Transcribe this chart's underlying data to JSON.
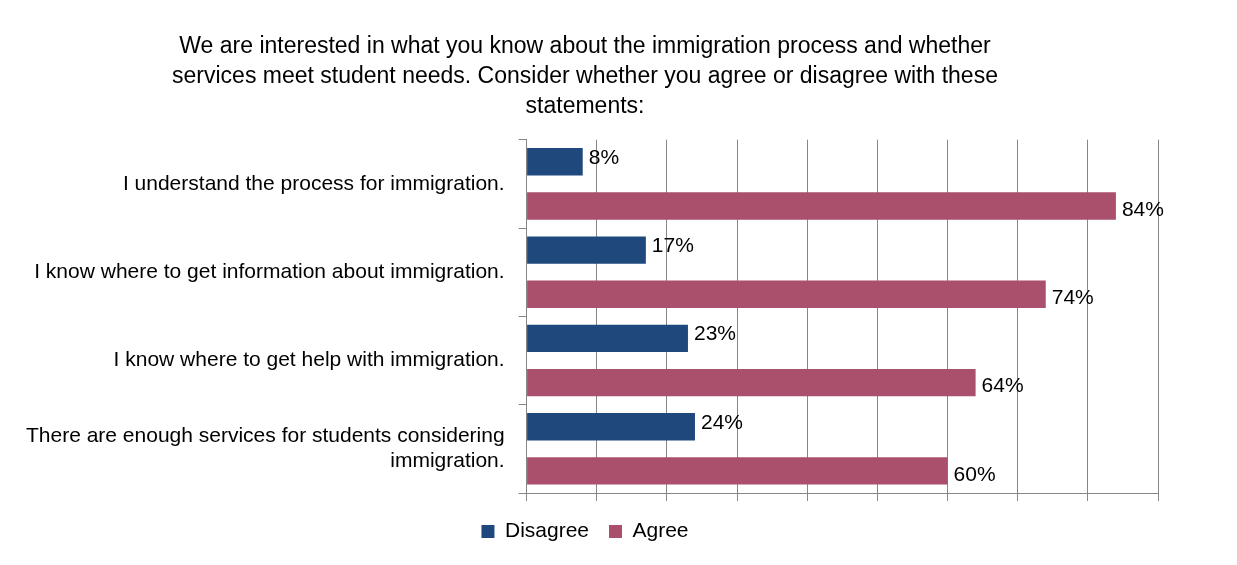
{
  "chart_data": {
    "type": "bar",
    "orientation": "horizontal",
    "title": "We are interested in what you know about the immigration process and whether services meet student needs. Consider whether you agree or disagree with these statements:",
    "categories": [
      "I understand the process for immigration.",
      "I know where to get information about immigration.",
      "I know where to get help with immigration.",
      "There are enough services for students considering immigration."
    ],
    "series": [
      {
        "name": "Disagree",
        "color": "#1f497d",
        "values": [
          8,
          17,
          23,
          24
        ],
        "value_labels": [
          "8%",
          "17%",
          "23%",
          "24%"
        ]
      },
      {
        "name": "Agree",
        "color": "#aa4f6c",
        "values": [
          84,
          74,
          64,
          60
        ],
        "value_labels": [
          "84%",
          "74%",
          "64%",
          "60%"
        ]
      }
    ],
    "xlim": [
      0,
      90
    ],
    "xticks": [
      {
        "value": 0,
        "label": null
      },
      {
        "value": 10,
        "label": null
      },
      {
        "value": 20,
        "label": null
      },
      {
        "value": 30,
        "label": null
      },
      {
        "value": 40,
        "label": null
      },
      {
        "value": 50,
        "label": null
      },
      {
        "value": 60,
        "label": null
      },
      {
        "value": 70,
        "label": null
      },
      {
        "value": 80,
        "label": null
      },
      {
        "value": 90,
        "label": null
      }
    ],
    "grid": "x",
    "legend": "bottom",
    "tick_labels": "y"
  }
}
